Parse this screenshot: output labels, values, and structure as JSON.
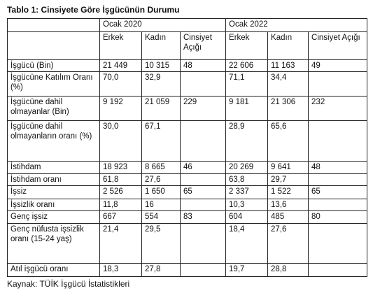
{
  "title": "Tablo 1: Cinsiyete Göre İşgücünün Durumu",
  "table": {
    "column_groups": [
      "Ocak 2020",
      "Ocak 2022"
    ],
    "columns": [
      "Erkek",
      "Kadın",
      "Cinsiyet Açığı",
      "Erkek",
      "Kadın",
      "Cinsiyet Açığı"
    ],
    "rows": [
      [
        "İşgücü (Bin)",
        "21 449",
        "10 315",
        "48",
        "22 606",
        "11 163",
        "49"
      ],
      [
        "İşgücüne Katılım Oranı (%)",
        "70,0",
        "32,9",
        null,
        "71,1",
        "34,4",
        null
      ],
      [
        "İşgücüne dahil olmayanlar (Bin)",
        "9 192",
        "21 059",
        "229",
        "9 181",
        "21 306",
        "232"
      ],
      [
        "İşgücüne dahil olmayanların oranı (%)",
        "30,0",
        "67,1",
        null,
        "28,9",
        "65,6",
        null
      ],
      [
        "İstihdam",
        "18 923",
        "8 665",
        "46",
        "20 269",
        "9 641",
        "48"
      ],
      [
        "İstihdam oranı",
        "61,8",
        "27,6",
        null,
        "63,8",
        "29,7",
        null
      ],
      [
        "İşsiz",
        "2 526",
        "1 650",
        "65",
        "2 337",
        "1 522",
        "65"
      ],
      [
        "İşsizlik oranı",
        "11,8",
        "16",
        null,
        "10,3",
        "13,6",
        null
      ],
      [
        "Genç işsiz",
        "667",
        "554",
        "83",
        "604",
        "485",
        "80"
      ],
      [
        "Genç nüfusta işsizlik oranı (15-24 yaş)",
        "21,4",
        "29,5",
        null,
        "18,4",
        "27,6",
        null
      ],
      [
        "Atıl işgücü oranı",
        "18,3",
        "27,8",
        null,
        "19,7",
        "28,8",
        null
      ]
    ]
  },
  "source": "Kaynak: TÜİK İşgücü İstatistikleri"
}
